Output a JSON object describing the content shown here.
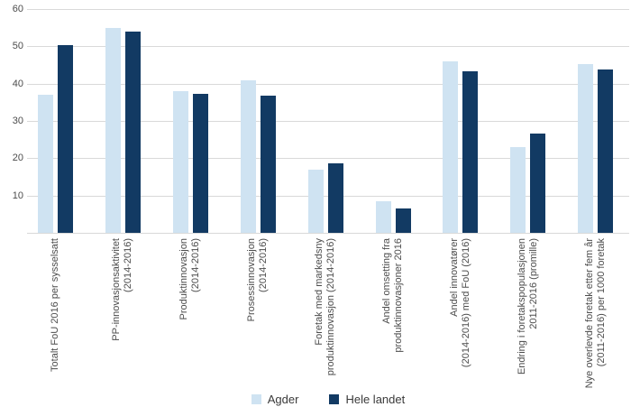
{
  "chart_data": {
    "type": "bar",
    "title": "",
    "xlabel": "",
    "ylabel": "",
    "ylim": [
      0,
      60
    ],
    "yticks": [
      10,
      20,
      30,
      40,
      50,
      60
    ],
    "grid": true,
    "legend_position": "bottom",
    "categories": [
      {
        "lines": [
          "Totalt FoU 2016 per sysselsatt"
        ]
      },
      {
        "lines": [
          "PP-innovasjonsaktivitet",
          "(2014-2016)"
        ]
      },
      {
        "lines": [
          "Produktinnovasjon",
          "(2014-2016)"
        ]
      },
      {
        "lines": [
          "Prosessinnovasjon",
          "(2014-2016)"
        ]
      },
      {
        "lines": [
          "Foretak med markedsny",
          "produktinnovasjon (2014-2016)"
        ]
      },
      {
        "lines": [
          "Andel omsetting fra",
          "produktinnovasjoner 2016"
        ]
      },
      {
        "lines": [
          "Andel innovatører",
          "(2014-2016) med FoU (2016)"
        ]
      },
      {
        "lines": [
          "Endring i foretakspopulasjonen",
          "2011-2016 (promille)"
        ]
      },
      {
        "lines": [
          "Nye overlevde foretak etter fem år",
          "(2011-2016) per 1000 foretak"
        ]
      }
    ],
    "series": [
      {
        "name": "Agder",
        "color": "#cfe3f2",
        "values": [
          37,
          55,
          38,
          41,
          17,
          8.5,
          46,
          23,
          45.3
        ]
      },
      {
        "name": "Hele landet",
        "color": "#123a63",
        "values": [
          50.3,
          54,
          37.2,
          36.8,
          18.6,
          6.6,
          43.4,
          26.5,
          43.8
        ]
      }
    ]
  },
  "colors": {
    "background": "#ffffff",
    "gridline": "#d9d9d9",
    "axis_text": "#4c4c4c",
    "legend_text": "#3a3a3a",
    "series_agder": "#cfe3f2",
    "series_hele_landet": "#123a63"
  }
}
